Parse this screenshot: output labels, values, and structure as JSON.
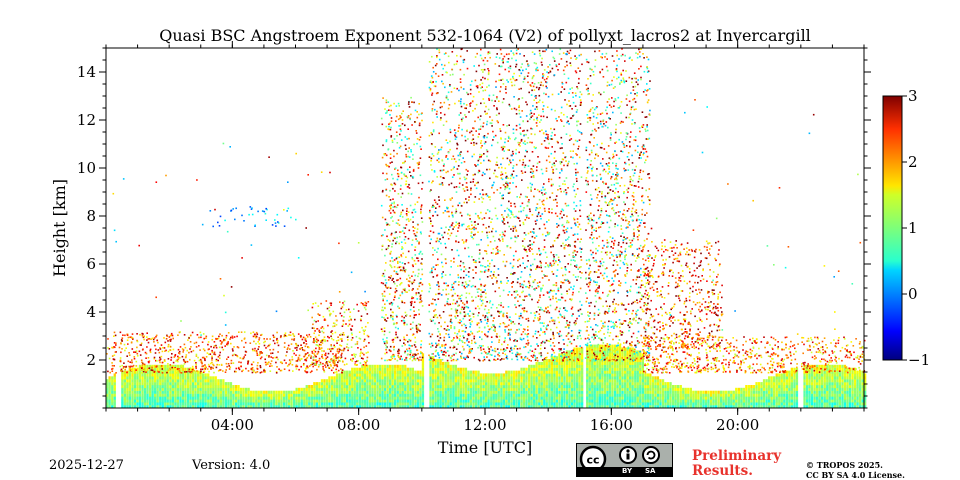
{
  "chart_data": {
    "type": "heatmap",
    "title": "Quasi BSC Angstroem Exponent 532-1064 (V2) of pollyxt_lacros2 at Invercargill",
    "xlabel": "Time [UTC]",
    "ylabel": "Height [km]",
    "xlim_hours": [
      0,
      24
    ],
    "ylim_km": [
      0,
      15
    ],
    "x_ticks": [
      {
        "value": 4,
        "label": "04:00"
      },
      {
        "value": 8,
        "label": "08:00"
      },
      {
        "value": 12,
        "label": "12:00"
      },
      {
        "value": 16,
        "label": "16:00"
      },
      {
        "value": 20,
        "label": "20:00"
      }
    ],
    "y_ticks": [
      {
        "value": 2,
        "label": "2"
      },
      {
        "value": 4,
        "label": "4"
      },
      {
        "value": 6,
        "label": "6"
      },
      {
        "value": 8,
        "label": "8"
      },
      {
        "value": 10,
        "label": "10"
      },
      {
        "value": 12,
        "label": "12"
      },
      {
        "value": 14,
        "label": "14"
      }
    ],
    "colorbar": {
      "range": [
        -1,
        3
      ],
      "ticks": [
        {
          "value": 3,
          "label": "3"
        },
        {
          "value": 2,
          "label": "2"
        },
        {
          "value": 1,
          "label": "1"
        },
        {
          "value": 0,
          "label": "0"
        },
        {
          "value": -1,
          "label": "−1"
        }
      ],
      "colormap": "jet"
    },
    "data_gaps_hours": [
      {
        "start": 0.3,
        "end": 0.4
      },
      {
        "start": 10.05,
        "end": 10.2
      },
      {
        "start": 15.05,
        "end": 15.15
      },
      {
        "start": 21.9,
        "end": 22.0
      }
    ],
    "features": [
      {
        "name": "boundary layer",
        "height_km": [
          0,
          2.5
        ],
        "typical_value": 1.0
      },
      {
        "name": "residual aerosol",
        "hours": [
          0,
          7.5
        ],
        "height_km": [
          1.5,
          3
        ],
        "typical_value": 2.2
      },
      {
        "name": "mid-day scattered signal",
        "hours": [
          10.2,
          17
        ],
        "height_km": [
          2,
          15
        ],
        "typical_value": 1.8
      },
      {
        "name": "thin layer",
        "hours": [
          3,
          6
        ],
        "height_km": [
          7.5,
          8.5
        ],
        "typical_value": 0.3
      }
    ]
  },
  "footer": {
    "date": "2025-12-27",
    "version": "Version: 4.0",
    "preliminary_line1": "Preliminary",
    "preliminary_line2": "Results.",
    "copyright_line1": "© TROPOS 2025.",
    "copyright_line2": "CC BY SA 4.0 License.",
    "license_by": "BY",
    "license_sa": "SA"
  }
}
